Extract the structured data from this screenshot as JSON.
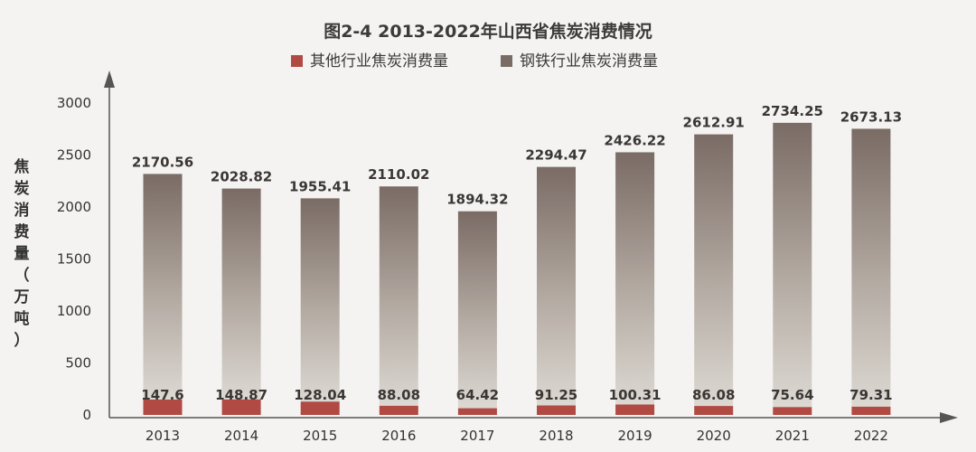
{
  "chart_data": {
    "type": "bar",
    "stacked": true,
    "title": "图2-4 2013-2022年山西省焦炭消费情况",
    "ylabel": "焦炭消费量（万吨）",
    "xlabel": "",
    "ylim": [
      0,
      3000
    ],
    "yticks": [
      0,
      500,
      1000,
      1500,
      2000,
      2500,
      3000
    ],
    "categories": [
      "2013",
      "2014",
      "2015",
      "2016",
      "2017",
      "2018",
      "2019",
      "2020",
      "2021",
      "2022"
    ],
    "series": [
      {
        "name": "其他行业焦炭消费量",
        "values": [
          147.6,
          148.87,
          128.04,
          88.08,
          64.42,
          91.25,
          100.31,
          86.08,
          75.64,
          79.31
        ],
        "labels": [
          "147.6",
          "148.87",
          "128.04",
          "88.08",
          "64.42",
          "91.25",
          "100.31",
          "86.08",
          "75.64",
          "79.31"
        ]
      },
      {
        "name": "钢铁行业焦炭消费量",
        "values": [
          2170.56,
          2028.82,
          1955.41,
          2110.02,
          1894.32,
          2294.47,
          2426.22,
          2612.91,
          2734.25,
          2673.13
        ],
        "labels": [
          "2170.56",
          "2028.82",
          "1955.41",
          "2110.02",
          "1894.32",
          "2294.47",
          "2426.22",
          "2612.91",
          "2734.25",
          "2673.13"
        ]
      }
    ],
    "colors": {
      "other": "#b04a43",
      "steel_top": "#7d6e68",
      "steel_bottom": "#d9d5cf"
    },
    "legend_position": "top-center",
    "grid": false
  }
}
